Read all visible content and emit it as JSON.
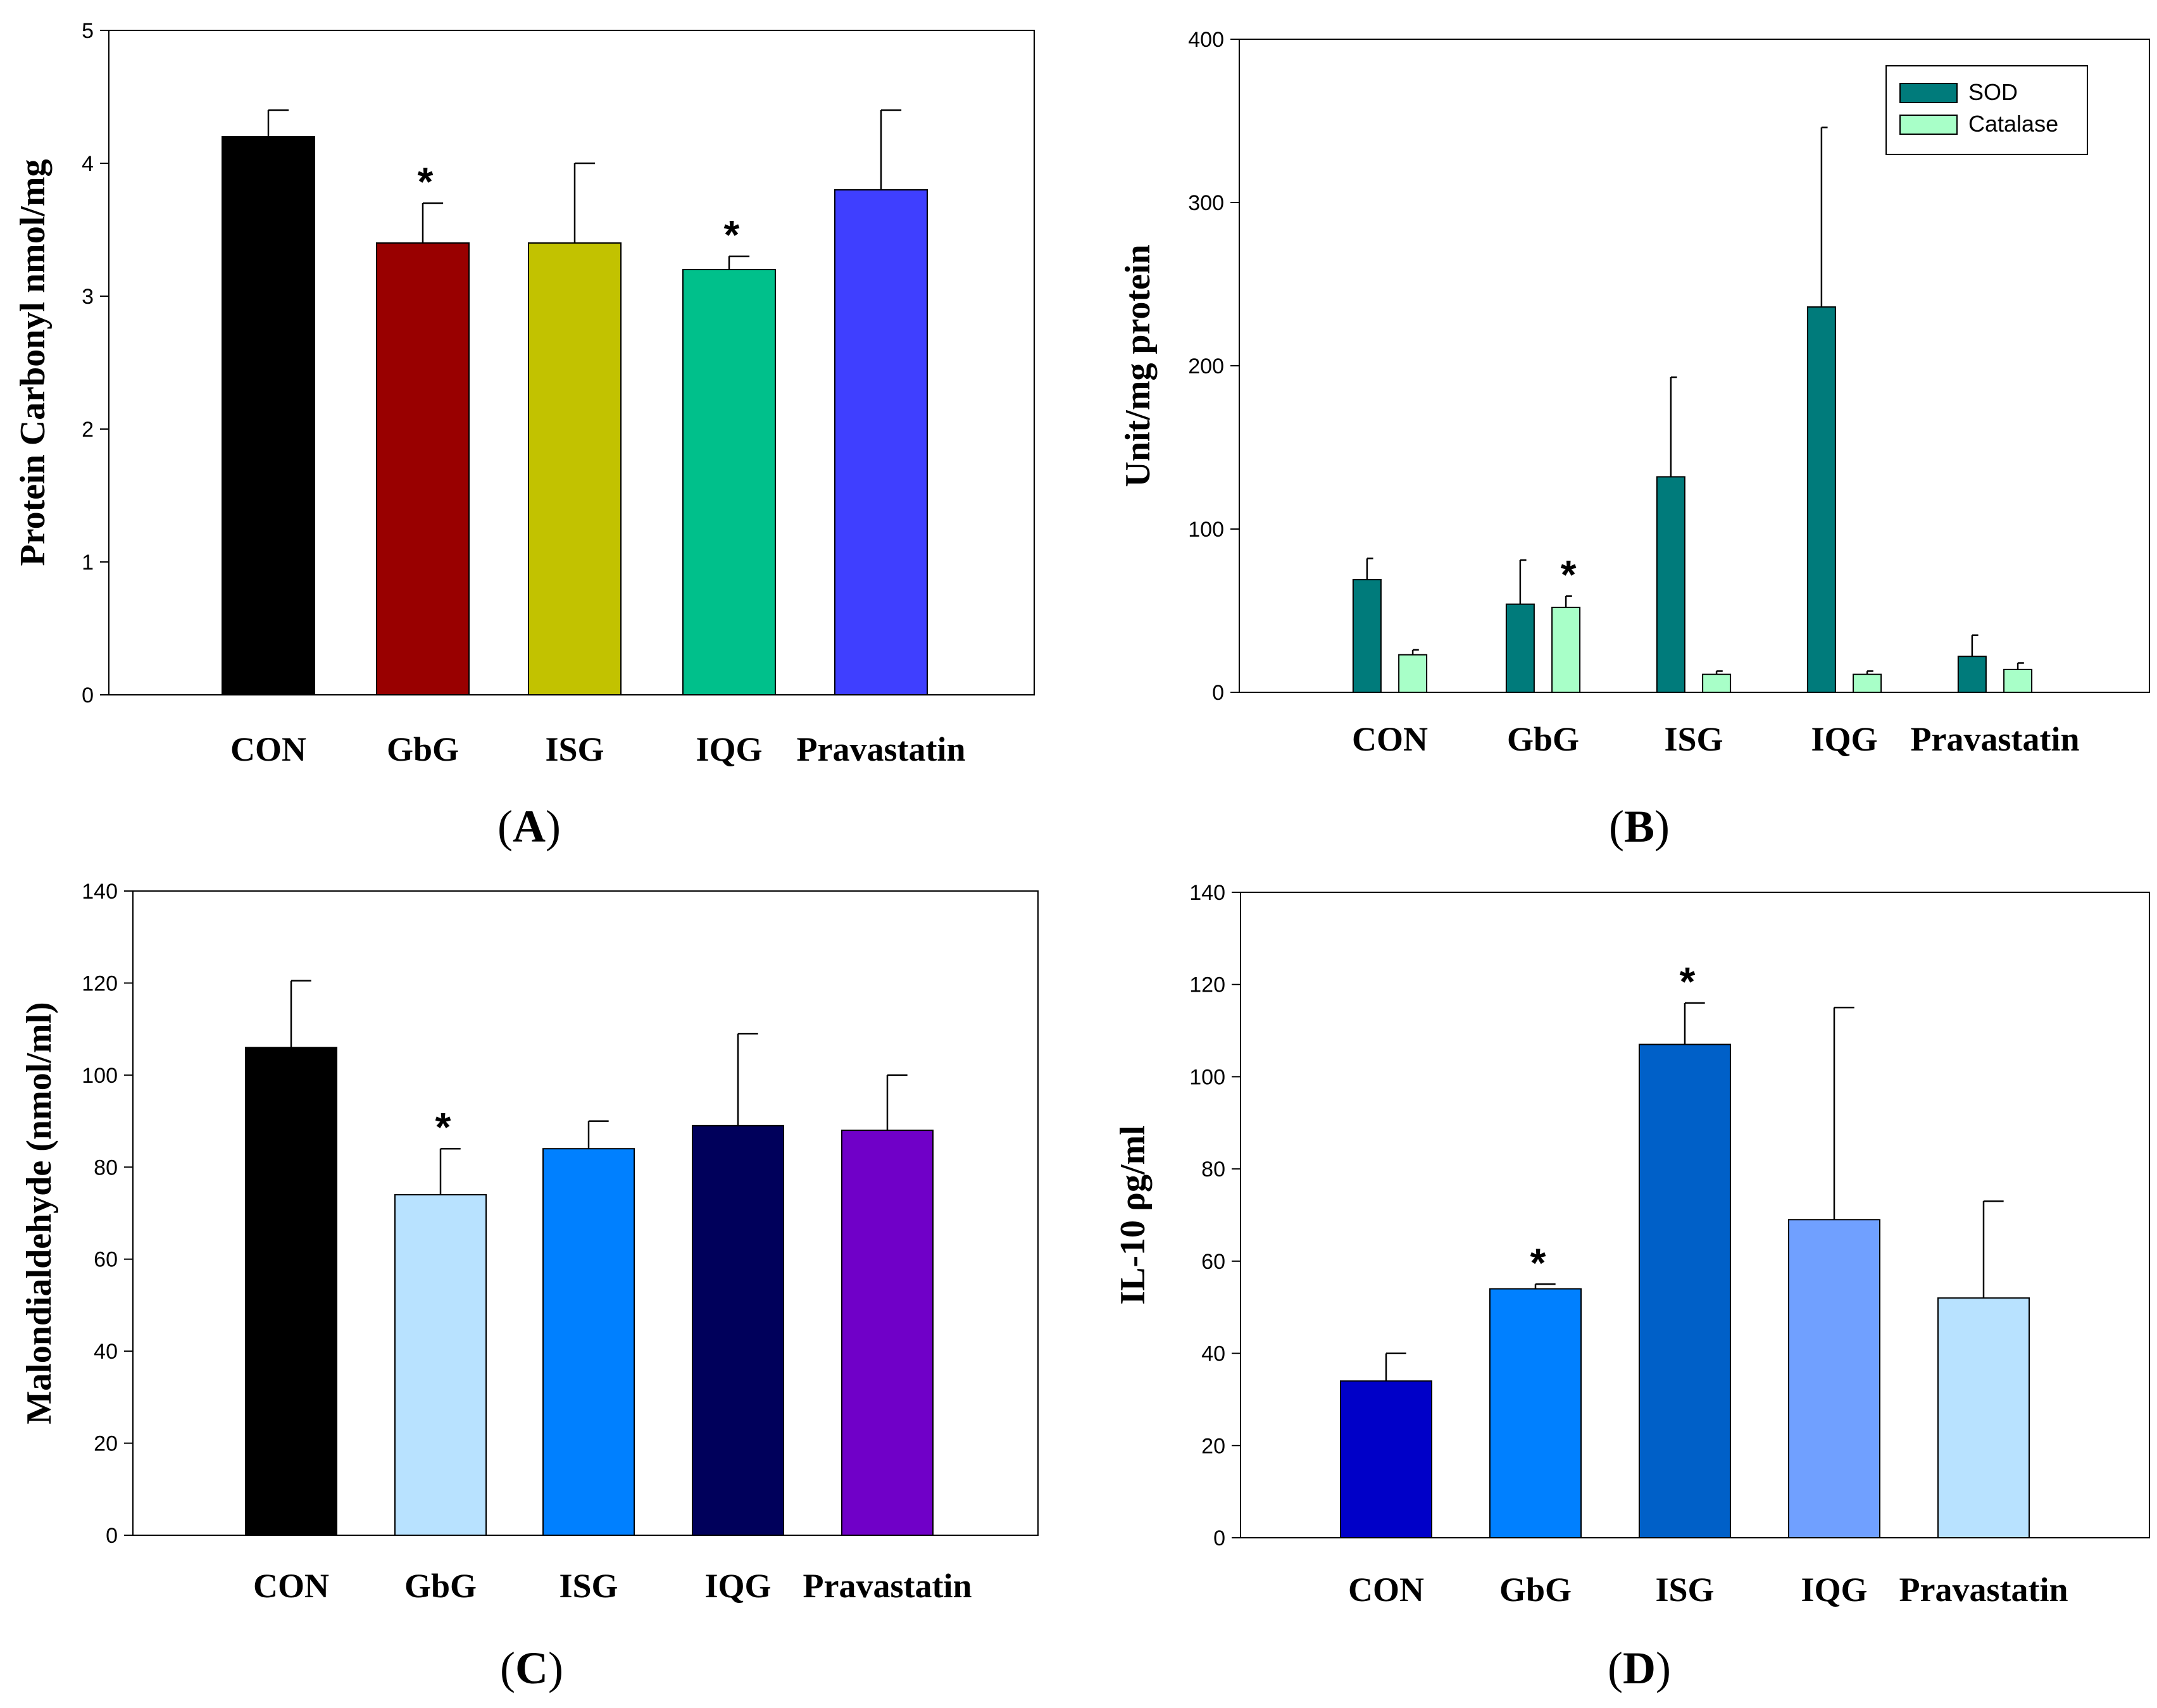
{
  "chart_data": [
    {
      "id": "A",
      "type": "bar",
      "panel_label": "A",
      "ylabel": "Protein Carbonyl nmol/mg",
      "categories": [
        "CON",
        "GbG",
        "ISG",
        "IQG",
        "Pravastatin"
      ],
      "values": [
        4.2,
        3.4,
        3.4,
        3.2,
        3.8
      ],
      "errors": [
        0.2,
        0.3,
        0.6,
        0.1,
        0.6
      ],
      "significant": [
        false,
        true,
        false,
        true,
        false
      ],
      "colors": [
        "#000000",
        "#990000",
        "#c2c200",
        "#00c08b",
        "#3f3fff"
      ],
      "ylim": [
        0,
        5
      ],
      "yticks": [
        "0",
        "1",
        "2",
        "3",
        "4",
        "5"
      ],
      "star_label": "*"
    },
    {
      "id": "B",
      "type": "bar",
      "panel_label": "B",
      "ylabel": "Unit/mg protein",
      "categories": [
        "CON",
        "GbG",
        "ISG",
        "IQG",
        "Pravastatin"
      ],
      "series": [
        {
          "name": "SOD",
          "color": "#007b7b",
          "values": [
            69,
            54,
            132,
            236,
            22
          ],
          "errors": [
            13,
            27,
            61,
            110,
            13
          ],
          "significant": [
            false,
            false,
            false,
            false,
            false
          ]
        },
        {
          "name": "Catalase",
          "color": "#a8ffc8",
          "values": [
            23,
            52,
            11,
            11,
            14
          ],
          "errors": [
            3,
            7,
            2,
            2,
            4
          ],
          "significant": [
            false,
            true,
            false,
            false,
            false
          ]
        }
      ],
      "ylim": [
        0,
        400
      ],
      "yticks": [
        "0",
        "100",
        "200",
        "300",
        "400"
      ],
      "legend_position": "top-right",
      "star_label": "*"
    },
    {
      "id": "C",
      "type": "bar",
      "panel_label": "C",
      "ylabel": "Malondialdehyde (nmol/ml)",
      "categories": [
        "CON",
        "GbG",
        "ISG",
        "IQG",
        "Pravastatin"
      ],
      "values": [
        106,
        74,
        84,
        89,
        88
      ],
      "errors": [
        14.5,
        10,
        6,
        20,
        12
      ],
      "significant": [
        false,
        true,
        false,
        false,
        false
      ],
      "colors": [
        "#000000",
        "#b8e2ff",
        "#0080ff",
        "#00005b",
        "#7000c8"
      ],
      "ylim": [
        0,
        140
      ],
      "yticks": [
        "0",
        "20",
        "40",
        "60",
        "80",
        "100",
        "120",
        "140"
      ],
      "star_label": "*"
    },
    {
      "id": "D",
      "type": "bar",
      "panel_label": "D",
      "ylabel": "IL-10 ρg/ml",
      "categories": [
        "CON",
        "GbG",
        "ISG",
        "IQG",
        "Pravastatin"
      ],
      "values": [
        34,
        54,
        107,
        69,
        52
      ],
      "errors": [
        6,
        1,
        9,
        46,
        21
      ],
      "significant": [
        false,
        true,
        true,
        false,
        false
      ],
      "colors": [
        "#0000c8",
        "#0080ff",
        "#0060c8",
        "#70a0ff",
        "#b8e2ff"
      ],
      "ylim": [
        0,
        140
      ],
      "yticks": [
        "0",
        "20",
        "40",
        "60",
        "80",
        "100",
        "120",
        "140"
      ],
      "star_label": "*"
    }
  ]
}
